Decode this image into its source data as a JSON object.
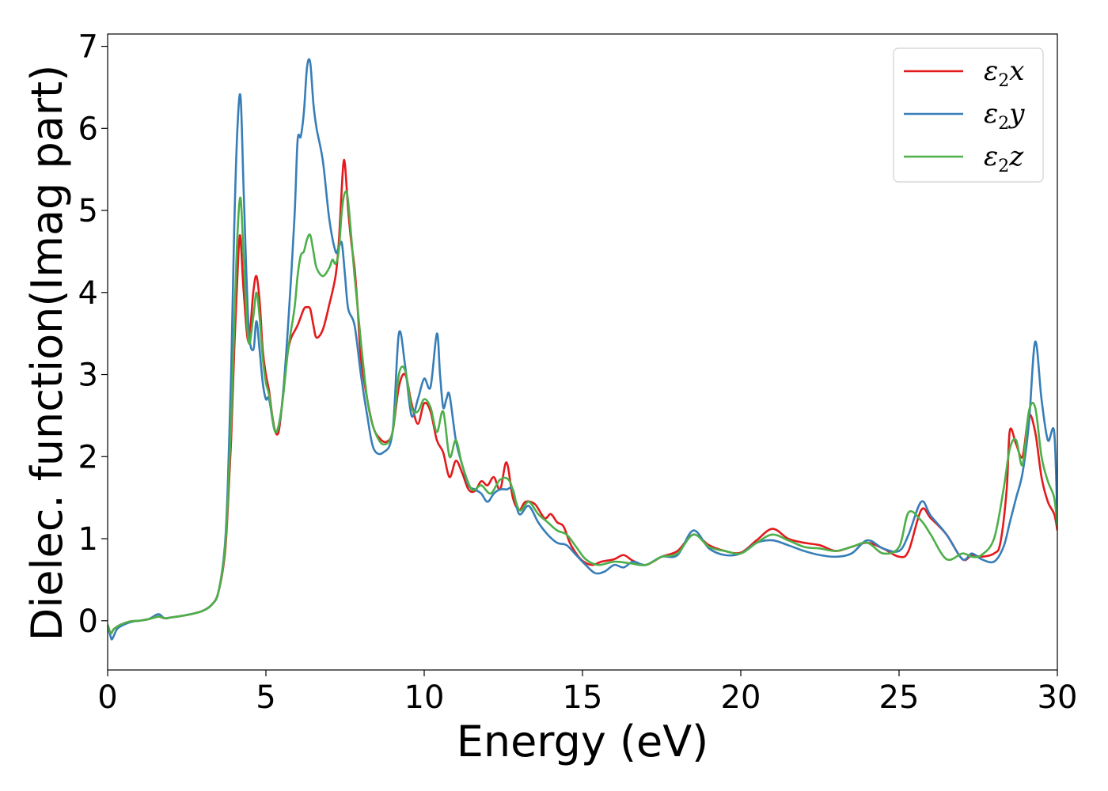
{
  "chart_data": {
    "type": "line",
    "xlabel": "Energy (eV)",
    "ylabel": "Dielec. function(Imag part)",
    "xlim": [
      0,
      30
    ],
    "ylim": [
      -0.6,
      7.15
    ],
    "xticks": [
      0,
      5,
      10,
      15,
      20,
      25,
      30
    ],
    "yticks": [
      0,
      1,
      2,
      3,
      4,
      5,
      6,
      7
    ],
    "grid": false,
    "legend_position": "top-right",
    "series": [
      {
        "name": "ε2x",
        "legend_symbol": "ε",
        "legend_sub": "2",
        "legend_var": "x",
        "color": "#e41a1c",
        "x": [
          0,
          0.1,
          0.2,
          0.4,
          0.7,
          1.0,
          1.3,
          1.6,
          1.8,
          2.0,
          2.5,
          3.0,
          3.3,
          3.5,
          3.7,
          3.8,
          3.9,
          4.0,
          4.1,
          4.15,
          4.2,
          4.3,
          4.45,
          4.6,
          4.7,
          4.8,
          4.9,
          5.0,
          5.1,
          5.2,
          5.3,
          5.4,
          5.5,
          5.6,
          5.7,
          5.8,
          6.0,
          6.2,
          6.3,
          6.4,
          6.5,
          6.6,
          6.8,
          7.0,
          7.2,
          7.3,
          7.4,
          7.45,
          7.5,
          7.6,
          7.7,
          7.8,
          7.9,
          8.0,
          8.2,
          8.4,
          8.6,
          8.8,
          9.0,
          9.2,
          9.4,
          9.6,
          9.8,
          10.0,
          10.2,
          10.4,
          10.6,
          10.8,
          11.0,
          11.2,
          11.4,
          11.6,
          11.8,
          12.0,
          12.2,
          12.4,
          12.6,
          12.8,
          13.0,
          13.2,
          13.5,
          13.8,
          14.0,
          14.2,
          14.4,
          14.6,
          14.8,
          15.0,
          15.3,
          15.6,
          16.0,
          16.3,
          16.6,
          17.0,
          17.5,
          18.0,
          18.5,
          19.0,
          19.5,
          20.0,
          20.5,
          21.0,
          21.5,
          22.0,
          22.5,
          23.0,
          23.5,
          24.0,
          24.5,
          25.0,
          25.3,
          25.7,
          26.0,
          26.5,
          27.0,
          27.3,
          27.6,
          28.0,
          28.2,
          28.4,
          28.5,
          28.7,
          28.9,
          29.1,
          29.3,
          29.5,
          29.7,
          29.9,
          30.0
        ],
        "y": [
          -0.05,
          -0.15,
          -0.1,
          -0.05,
          -0.01,
          0.0,
          0.02,
          0.05,
          0.03,
          0.04,
          0.07,
          0.12,
          0.2,
          0.35,
          0.8,
          1.4,
          2.2,
          3.3,
          4.2,
          4.6,
          4.65,
          4.0,
          3.4,
          4.0,
          4.2,
          3.9,
          3.3,
          3.0,
          2.8,
          2.5,
          2.3,
          2.3,
          2.6,
          3.0,
          3.3,
          3.45,
          3.6,
          3.8,
          3.82,
          3.8,
          3.6,
          3.45,
          3.55,
          3.85,
          4.2,
          4.6,
          5.3,
          5.58,
          5.55,
          5.0,
          4.6,
          4.3,
          3.8,
          3.2,
          2.7,
          2.35,
          2.22,
          2.18,
          2.3,
          2.85,
          3.0,
          2.65,
          2.4,
          2.65,
          2.55,
          2.2,
          2.05,
          1.75,
          1.95,
          1.8,
          1.6,
          1.58,
          1.7,
          1.65,
          1.75,
          1.6,
          1.93,
          1.5,
          1.35,
          1.45,
          1.42,
          1.25,
          1.3,
          1.2,
          1.15,
          0.95,
          0.82,
          0.73,
          0.68,
          0.72,
          0.75,
          0.8,
          0.73,
          0.68,
          0.78,
          0.85,
          1.05,
          0.92,
          0.85,
          0.83,
          0.98,
          1.12,
          1.0,
          0.95,
          0.92,
          0.85,
          0.9,
          0.95,
          0.88,
          0.78,
          0.85,
          1.35,
          1.25,
          1.05,
          0.75,
          0.8,
          0.78,
          0.82,
          0.95,
          1.6,
          2.32,
          2.15,
          2.0,
          2.5,
          2.3,
          1.75,
          1.45,
          1.3,
          1.1
        ]
      },
      {
        "name": "ε2y",
        "legend_symbol": "ε",
        "legend_sub": "2",
        "legend_var": "y",
        "color": "#377eb8",
        "x": [
          0,
          0.1,
          0.15,
          0.3,
          0.5,
          0.8,
          1.0,
          1.3,
          1.6,
          1.8,
          2.0,
          2.5,
          3.0,
          3.3,
          3.5,
          3.7,
          3.8,
          3.9,
          4.0,
          4.1,
          4.2,
          4.3,
          4.45,
          4.6,
          4.7,
          4.8,
          4.9,
          5.0,
          5.1,
          5.3,
          5.5,
          5.7,
          5.9,
          6.0,
          6.1,
          6.2,
          6.3,
          6.4,
          6.5,
          6.6,
          6.8,
          7.0,
          7.2,
          7.3,
          7.4,
          7.5,
          7.6,
          7.8,
          8.0,
          8.2,
          8.4,
          8.7,
          9.0,
          9.2,
          9.4,
          9.6,
          9.8,
          10.0,
          10.2,
          10.4,
          10.5,
          10.6,
          10.7,
          10.8,
          11.0,
          11.2,
          11.4,
          11.6,
          11.8,
          12.0,
          12.2,
          12.4,
          12.6,
          12.8,
          13.0,
          13.3,
          13.6,
          13.9,
          14.2,
          14.5,
          14.8,
          15.1,
          15.4,
          15.7,
          16.0,
          16.3,
          16.6,
          17.0,
          17.5,
          18.0,
          18.5,
          19.0,
          19.5,
          20.0,
          20.5,
          21.0,
          21.5,
          22.0,
          22.5,
          23.0,
          23.5,
          24.0,
          24.5,
          25.0,
          25.3,
          25.7,
          26.0,
          26.5,
          27.0,
          27.3,
          27.6,
          28.0,
          28.3,
          28.5,
          28.7,
          28.9,
          29.1,
          29.3,
          29.5,
          29.7,
          29.9,
          30.0
        ],
        "y": [
          -0.05,
          -0.2,
          -0.22,
          -0.1,
          -0.05,
          -0.01,
          0.0,
          0.02,
          0.08,
          0.03,
          0.04,
          0.07,
          0.12,
          0.2,
          0.35,
          0.9,
          1.7,
          3.0,
          4.8,
          6.0,
          6.38,
          5.2,
          3.6,
          3.3,
          3.65,
          3.3,
          2.9,
          2.7,
          2.7,
          2.3,
          2.6,
          3.6,
          4.9,
          5.85,
          5.9,
          6.2,
          6.75,
          6.8,
          6.3,
          6.0,
          5.6,
          4.9,
          4.5,
          4.55,
          4.6,
          4.2,
          3.8,
          3.6,
          3.0,
          2.5,
          2.1,
          2.05,
          2.3,
          3.5,
          3.1,
          2.5,
          2.7,
          2.95,
          2.85,
          3.5,
          3.0,
          2.6,
          2.7,
          2.75,
          2.2,
          1.9,
          1.65,
          1.6,
          1.55,
          1.45,
          1.55,
          1.6,
          1.6,
          1.6,
          1.3,
          1.4,
          1.2,
          1.05,
          0.95,
          0.92,
          0.8,
          0.68,
          0.58,
          0.6,
          0.68,
          0.65,
          0.72,
          0.68,
          0.78,
          0.8,
          1.1,
          0.88,
          0.8,
          0.82,
          0.95,
          0.98,
          0.92,
          0.85,
          0.8,
          0.78,
          0.82,
          0.98,
          0.88,
          0.85,
          1.05,
          1.45,
          1.28,
          1.05,
          0.75,
          0.82,
          0.75,
          0.72,
          0.9,
          1.2,
          1.5,
          1.8,
          2.4,
          3.4,
          2.7,
          2.2,
          2.3,
          1.2
        ]
      },
      {
        "name": "ε2z",
        "legend_symbol": "ε",
        "legend_sub": "2",
        "legend_var": "z",
        "color": "#4daf4a",
        "x": [
          0,
          0.1,
          0.2,
          0.4,
          0.7,
          1.0,
          1.3,
          1.6,
          1.8,
          2.0,
          2.5,
          3.0,
          3.3,
          3.5,
          3.7,
          3.8,
          3.9,
          4.0,
          4.1,
          4.2,
          4.3,
          4.45,
          4.6,
          4.7,
          4.8,
          4.9,
          5.0,
          5.1,
          5.3,
          5.5,
          5.7,
          5.9,
          6.0,
          6.1,
          6.2,
          6.3,
          6.4,
          6.5,
          6.6,
          6.8,
          7.0,
          7.1,
          7.2,
          7.3,
          7.4,
          7.5,
          7.6,
          7.8,
          8.0,
          8.2,
          8.4,
          8.7,
          9.0,
          9.2,
          9.4,
          9.6,
          9.8,
          10.0,
          10.2,
          10.4,
          10.6,
          10.8,
          11.0,
          11.2,
          11.5,
          11.8,
          12.1,
          12.4,
          12.7,
          13.0,
          13.3,
          13.6,
          13.9,
          14.2,
          14.5,
          14.8,
          15.1,
          15.5,
          16.0,
          16.5,
          17.0,
          17.5,
          18.0,
          18.5,
          19.0,
          19.5,
          20.0,
          20.5,
          21.0,
          21.5,
          22.0,
          22.5,
          23.0,
          23.5,
          24.0,
          24.5,
          25.0,
          25.3,
          25.7,
          26.0,
          26.5,
          27.0,
          27.3,
          27.6,
          28.0,
          28.3,
          28.5,
          28.7,
          28.9,
          29.1,
          29.3,
          29.5,
          29.7,
          29.9,
          30.0
        ],
        "y": [
          -0.05,
          -0.15,
          -0.1,
          -0.05,
          -0.01,
          0.0,
          0.02,
          0.05,
          0.03,
          0.04,
          0.07,
          0.12,
          0.2,
          0.35,
          0.85,
          1.5,
          2.4,
          3.6,
          4.7,
          5.15,
          4.4,
          3.4,
          3.7,
          4.0,
          3.7,
          3.2,
          2.9,
          2.75,
          2.3,
          2.6,
          3.3,
          3.8,
          4.2,
          4.45,
          4.5,
          4.65,
          4.7,
          4.5,
          4.3,
          4.2,
          4.3,
          4.4,
          4.35,
          4.5,
          5.0,
          5.22,
          5.1,
          4.2,
          3.4,
          2.7,
          2.35,
          2.15,
          2.3,
          3.0,
          3.05,
          2.6,
          2.55,
          2.7,
          2.6,
          2.3,
          2.55,
          2.0,
          2.2,
          1.9,
          1.6,
          1.65,
          1.55,
          1.72,
          1.7,
          1.35,
          1.45,
          1.3,
          1.2,
          1.1,
          1.05,
          0.9,
          0.75,
          0.68,
          0.72,
          0.7,
          0.68,
          0.78,
          0.82,
          1.05,
          0.9,
          0.85,
          0.82,
          0.95,
          1.05,
          0.98,
          0.9,
          0.88,
          0.85,
          0.9,
          0.95,
          0.82,
          0.9,
          1.32,
          1.22,
          1.05,
          0.75,
          0.82,
          0.78,
          0.8,
          1.0,
          1.6,
          2.1,
          2.2,
          1.9,
          2.55,
          2.6,
          2.0,
          1.7,
          1.5,
          1.15
        ]
      }
    ]
  }
}
